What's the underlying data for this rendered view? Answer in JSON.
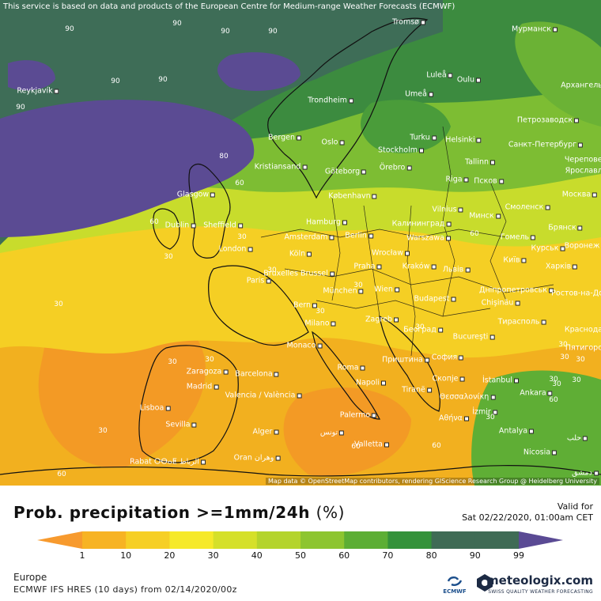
{
  "map": {
    "disclaimer": "This service is based on data and products of the European Centre for Medium-range Weather Forecasts (ECMWF)",
    "attribution": "Map data © OpenStreetMap contributors, rendering GIScience Research Group @ Heidelberg University",
    "cities": [
      "Reykjavík",
      "Tromsø",
      "Мурманск",
      "Luleå",
      "Oulu",
      "Umeå",
      "Trondheim",
      "Петрозаводск",
      "Bergen",
      "Oslo",
      "Turku",
      "Helsinki",
      "Санкт-Петербург",
      "Stockholm",
      "Kristiansand",
      "Göteborg",
      "Örebro",
      "Tallinn",
      "Псков",
      "Riga",
      "Glasgow",
      "København",
      "Москва",
      "Vilnius",
      "Смоленск",
      "Минск",
      "Dublin",
      "Sheffield",
      "Hamburg",
      "Калининград",
      "Брянск",
      "Amsterdam",
      "Berlin",
      "Warszawa",
      "Гомель",
      "London",
      "Köln",
      "Wrocław",
      "Київ",
      "Курськ",
      "Bruxelles Brussel",
      "Praha",
      "Kraków",
      "Львів",
      "Paris",
      "München",
      "Wien",
      "Дніпропетровськ",
      "Bern",
      "Budapest",
      "Chişinău",
      "Milano",
      "Zagreb",
      "Тирасполь",
      "Monaco",
      "Београд",
      "Bucureşti",
      "Приштина",
      "София",
      "Zaragoza",
      "Barcelona",
      "Roma",
      "Madrid",
      "Valencia / València",
      "Napoli",
      "Скопје",
      "Tiranë",
      "İstanbul",
      "Θεσσαλονίκη",
      "Ankara",
      "Lisboa",
      "Αθήνα",
      "İzmir",
      "Sevilla",
      "Alger",
      "تونس",
      "Palermo",
      "Antalya",
      "Valletta",
      "Rabat ⵔⴱⴰⵟ الرباط",
      "Oran وهران",
      "Nicosia",
      "Архангельск",
      "Ярославль",
      "Череповец",
      "Воронеж",
      "Харків",
      "Ростов-на-Дону",
      "Краснодар",
      "Пятигорск",
      "حلب",
      "دمشق"
    ],
    "isolines": [
      "90",
      "90",
      "90",
      "90",
      "90",
      "90",
      "90",
      "80",
      "60",
      "60",
      "30",
      "30",
      "30",
      "30",
      "30",
      "30",
      "30",
      "60",
      "30",
      "30",
      "30",
      "30",
      "30",
      "60",
      "30",
      "30",
      "30",
      "30",
      "60",
      "60",
      "60",
      "30"
    ]
  },
  "legend": {
    "title": "Prob. precipitation >=1mm/24h",
    "unit": "(%)",
    "valid_label": "Valid for",
    "valid_time": "Sat 02/22/2020, 01:00am CET",
    "region": "Europe",
    "model": "ECMWF IFS HRES (10 days) from 02/14/2020/00z",
    "ticks": [
      "1",
      "10",
      "20",
      "30",
      "40",
      "50",
      "60",
      "70",
      "80",
      "90",
      "99"
    ],
    "colors": [
      "#f79a2e",
      "#f7b323",
      "#f6cf25",
      "#f6e92a",
      "#d5e02a",
      "#b4d42c",
      "#8dc530",
      "#5cae34",
      "#34923a",
      "#3f6b55",
      "#5a4a94"
    ]
  },
  "branding": {
    "name": "meteologix.com",
    "tagline": "SWISS QUALITY WEATHER FORECASTING",
    "ecmwf": "ECMWF"
  }
}
